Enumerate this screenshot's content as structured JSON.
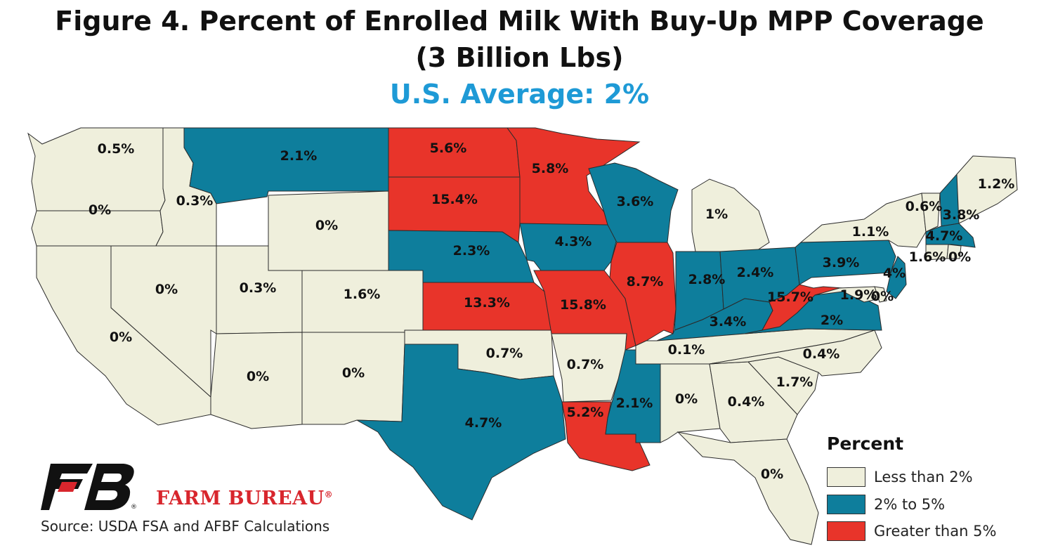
{
  "title_line1": "Figure 4. Percent of Enrolled Milk With Buy-Up MPP Coverage",
  "title_line2": "(3 Billion Lbs)",
  "subtitle": "U.S. Average: 2%",
  "colors": {
    "low": "#efefdc",
    "mid": "#0e7e9c",
    "high": "#e8342a",
    "subtitle": "#1e9ad6",
    "brand": "#d8262d"
  },
  "legend": {
    "title": "Percent",
    "items": [
      {
        "label": "Less than 2%",
        "class": "low"
      },
      {
        "label": "2% to 5%",
        "class": "mid"
      },
      {
        "label": "Greater than 5%",
        "class": "high"
      }
    ]
  },
  "logo": {
    "text": "FARM BUREAU",
    "mark": "®"
  },
  "source": "Source: USDA FSA and AFBF Calculations",
  "states": {
    "WA": {
      "value": "0.5%"
    },
    "OR": {
      "value": "0%"
    },
    "ID": {
      "value": "0.3%"
    },
    "MT": {
      "value": "2.1%"
    },
    "WY": {
      "value": "0%"
    },
    "NV": {
      "value": "0%"
    },
    "UT": {
      "value": "0.3%"
    },
    "CO": {
      "value": "1.6%"
    },
    "CA": {
      "value": "0%"
    },
    "AZ": {
      "value": "0%"
    },
    "NM": {
      "value": "0%"
    },
    "ND": {
      "value": "5.6%"
    },
    "SD": {
      "value": "15.4%"
    },
    "NE": {
      "value": "2.3%"
    },
    "KS": {
      "value": "13.3%"
    },
    "OK": {
      "value": "0.7%"
    },
    "TX": {
      "value": "4.7%"
    },
    "MN": {
      "value": "5.8%"
    },
    "IA": {
      "value": "4.3%"
    },
    "MO": {
      "value": "15.8%"
    },
    "AR": {
      "value": "0.7%"
    },
    "LA": {
      "value": "5.2%"
    },
    "WI": {
      "value": "3.6%"
    },
    "IL": {
      "value": "8.7%"
    },
    "MS": {
      "value": "2.1%"
    },
    "MI": {
      "value": "1%"
    },
    "IN": {
      "value": "2.8%"
    },
    "OH": {
      "value": "2.4%"
    },
    "KY": {
      "value": "3.4%"
    },
    "TN": {
      "value": "0.1%"
    },
    "AL": {
      "value": "0%"
    },
    "GA": {
      "value": "0.4%"
    },
    "FL": {
      "value": "0%"
    },
    "SC": {
      "value": "1.7%"
    },
    "NC": {
      "value": "0.4%"
    },
    "VA": {
      "value": "2%"
    },
    "WV": {
      "value": "15.7%"
    },
    "PA": {
      "value": "3.9%"
    },
    "NY": {
      "value": "1.1%"
    },
    "VT": {
      "value": "0.6%"
    },
    "NH": {
      "value": "3.8%"
    },
    "ME": {
      "value": "1.2%"
    },
    "MA": {
      "value": "4.7%"
    },
    "CT": {
      "value": "1.6%"
    },
    "RI": {
      "value": "0%"
    },
    "NJ": {
      "value": "4%"
    },
    "MD": {
      "value": "1.9%"
    },
    "DE": {
      "value": "0%"
    }
  }
}
